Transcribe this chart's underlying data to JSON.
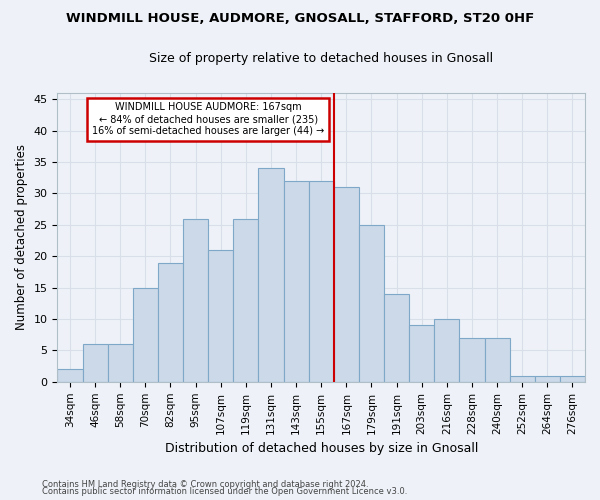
{
  "title": "WINDMILL HOUSE, AUDMORE, GNOSALL, STAFFORD, ST20 0HF",
  "subtitle": "Size of property relative to detached houses in Gnosall",
  "xlabel": "Distribution of detached houses by size in Gnosall",
  "ylabel": "Number of detached properties",
  "categories": [
    "34sqm",
    "46sqm",
    "58sqm",
    "70sqm",
    "82sqm",
    "95sqm",
    "107sqm",
    "119sqm",
    "131sqm",
    "143sqm",
    "155sqm",
    "167sqm",
    "179sqm",
    "191sqm",
    "203sqm",
    "216sqm",
    "228sqm",
    "240sqm",
    "252sqm",
    "264sqm",
    "276sqm"
  ],
  "values": [
    2,
    6,
    6,
    15,
    19,
    26,
    21,
    26,
    34,
    32,
    32,
    31,
    25,
    14,
    9,
    10,
    7,
    7,
    1,
    1,
    1
  ],
  "bar_color": "#ccd9e8",
  "bar_edge_color": "#7fa8c8",
  "marker_index": 11,
  "annotation_title": "WINDMILL HOUSE AUDMORE: 167sqm",
  "annotation_line1": "← 84% of detached houses are smaller (235)",
  "annotation_line2": "16% of semi-detached houses are larger (44) →",
  "vline_color": "#cc0000",
  "annotation_box_color": "#cc0000",
  "bg_color": "#eef2f8",
  "grid_color": "#d8dfe8",
  "ylim": [
    0,
    46
  ],
  "yticks": [
    0,
    5,
    10,
    15,
    20,
    25,
    30,
    35,
    40,
    45
  ],
  "footnote1": "Contains HM Land Registry data © Crown copyright and database right 2024.",
  "footnote2": "Contains public sector information licensed under the Open Government Licence v3.0."
}
